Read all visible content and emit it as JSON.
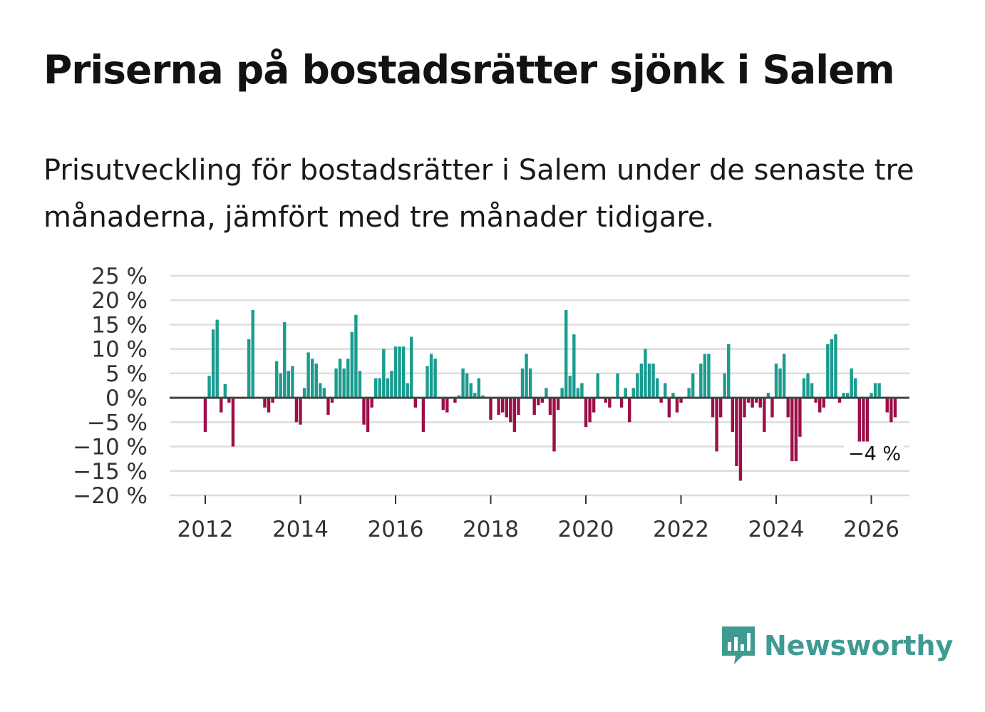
{
  "title": "Priserna på bostadsrätter sjönk i Salem",
  "subtitle": "Prisutveckling för bostadsrätter i Salem under de senaste tre månaderna, jämfört med tre månader tidigare.",
  "brand": {
    "name": "Newsworthy",
    "icon": "newsworthy-logo-icon"
  },
  "colors": {
    "positive": "#1a9c8f",
    "negative": "#9c0f48",
    "grid": "#dddddd",
    "zero": "#444444"
  },
  "chart_data": {
    "type": "bar",
    "title": "Priserna på bostadsrätter sjönk i Salem",
    "xlabel": "",
    "ylabel": "",
    "ylim": [
      -20,
      25
    ],
    "y_ticks": [
      25,
      20,
      15,
      10,
      5,
      0,
      -5,
      -10,
      -15,
      -20
    ],
    "y_tick_labels": [
      "25 %",
      "20 %",
      "15 %",
      "10 %",
      "5 %",
      "0 %",
      "−5 %",
      "−10 %",
      "−15 %",
      "−20 %"
    ],
    "x_tick_labels": [
      "2012",
      "2014",
      "2016",
      "2018",
      "2020",
      "2022",
      "2024",
      "2026"
    ],
    "x_tick_years": [
      2012,
      2014,
      2016,
      2018,
      2020,
      2022,
      2024,
      2026
    ],
    "start": "2012-01",
    "frequency": "monthly",
    "values": [
      -7,
      4.5,
      14,
      16,
      -3,
      2.8,
      -1,
      -10,
      0,
      0,
      0,
      12,
      18,
      0,
      0,
      -2,
      -3,
      -1,
      7.5,
      5,
      15.5,
      5.5,
      6.5,
      -5,
      -5.5,
      2,
      9.3,
      8,
      7,
      3,
      2,
      -3.5,
      -1,
      6,
      8,
      6,
      8,
      13.5,
      17,
      5.5,
      -5.5,
      -7,
      -2,
      4,
      4,
      10,
      4,
      5.5,
      10.5,
      10.5,
      10.5,
      3,
      12.5,
      -2,
      0,
      -7,
      6.5,
      9,
      8,
      0,
      -2.5,
      -3,
      0,
      -1,
      0.5,
      6,
      5,
      3,
      1,
      4,
      0.5,
      0,
      -4.5,
      0,
      -3.5,
      -3,
      -4,
      -5,
      -7,
      -3.5,
      6,
      9,
      6,
      -3.5,
      -1.5,
      -1,
      2,
      -3.5,
      -11,
      -2.5,
      2,
      18,
      4.5,
      13,
      2,
      3,
      -6,
      -5,
      -3,
      5,
      0,
      -1,
      -2,
      0,
      5,
      -2,
      2,
      -5,
      2,
      5,
      7,
      10,
      7,
      7,
      4,
      -1,
      3,
      -4,
      1,
      -3,
      -1,
      0,
      2,
      5,
      0,
      7,
      9,
      9,
      -4,
      -11,
      -4,
      5,
      11,
      -7,
      -14,
      -17,
      -4,
      -1,
      -2,
      -1,
      -2,
      -7,
      1,
      -4,
      7,
      6,
      9,
      -4,
      -13,
      -13,
      -8,
      4,
      5,
      3,
      -1,
      -3,
      -2,
      11,
      12,
      13,
      -1,
      1,
      1,
      6,
      4,
      -9,
      -9,
      -11,
      1,
      3,
      3,
      0,
      -3,
      -5,
      -4
    ],
    "last_value_label": "−4 %"
  }
}
